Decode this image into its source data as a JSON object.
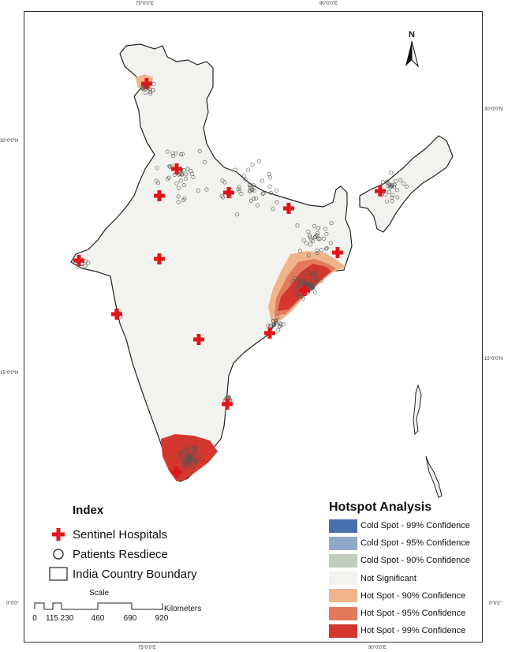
{
  "graticule": {
    "top_75": "75°0'0\"E",
    "top_90": "90°0'0\"E",
    "bottom_75": "75°0'0\"E",
    "bottom_90": "90°0'0\"E",
    "left_30": "30°0'0\"N",
    "left_15": "15°0'0\"N",
    "left_0": "0°0'0\"",
    "right_30": "30°0'0\"N",
    "right_15": "15°0'0\"N",
    "right_0": "0°0'0\""
  },
  "north_arrow": {
    "label": "N"
  },
  "index_legend": {
    "title": "Index",
    "items": [
      {
        "label": "Sentinel Hospitals",
        "icon": "red-cross-icon"
      },
      {
        "label": "Patients Resdiece",
        "icon": "hollow-circle-icon"
      },
      {
        "label": "India Country Boundary",
        "icon": "outline-box-icon"
      }
    ]
  },
  "hotspot_legend": {
    "title": "Hotspot Analysis",
    "classes": [
      {
        "label": "Cold Spot - 99% Confidence",
        "color": "#4a6fae"
      },
      {
        "label": "Cold Spot - 95% Confidence",
        "color": "#8ea8c8"
      },
      {
        "label": "Cold Spot - 90% Confidence",
        "color": "#c3cdbf"
      },
      {
        "label": "Not Significant",
        "color": "#f2f3ee"
      },
      {
        "label": "Hot Spot - 90% Confidence",
        "color": "#f0b48a"
      },
      {
        "label": "Hot Spot - 95% Confidence",
        "color": "#e27a5b"
      },
      {
        "label": "Hot Spot - 99% Confidence",
        "color": "#d3372d"
      }
    ]
  },
  "scale_bar": {
    "title": "Scale",
    "unit": "Kilometers",
    "ticks": [
      "0",
      "115",
      "230",
      "460",
      "690",
      "920"
    ]
  }
}
